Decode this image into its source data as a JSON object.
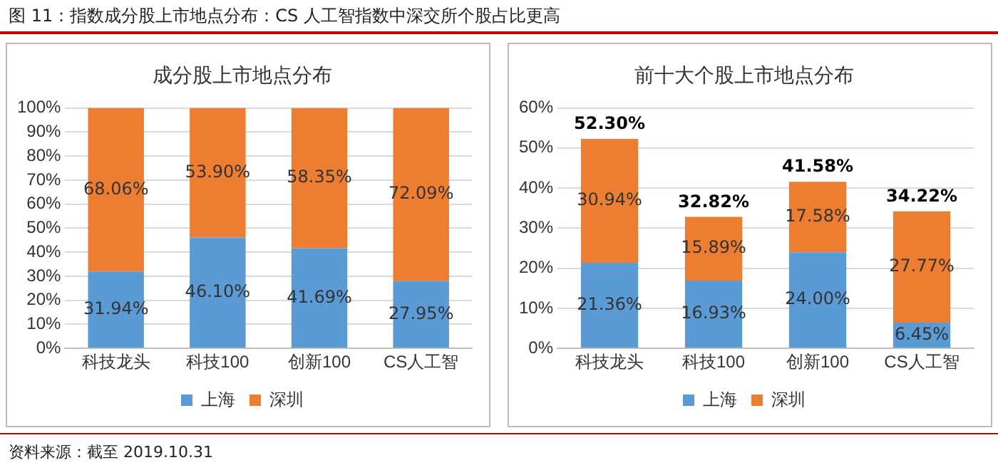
{
  "chart_data": [
    {
      "type": "bar",
      "title": "成分股上市地点分布",
      "annotations": [
        "图 11：指数成分股上市地点分布：CS 人工智指数中深交所个股占比更高",
        "资料来源：截至 2019.10.31"
      ],
      "categories": [
        "科技龙头",
        "科技100",
        "创新100",
        "CS人工智"
      ],
      "stacked": true,
      "legend": "bottom",
      "grid": "y",
      "ylim": [
        0,
        100
      ],
      "yticks": [
        {
          "value": 0,
          "label": "0%"
        },
        {
          "value": 10,
          "label": "10%"
        },
        {
          "value": 20,
          "label": "20%"
        },
        {
          "value": 30,
          "label": "30%"
        },
        {
          "value": 40,
          "label": "40%"
        },
        {
          "value": 50,
          "label": "50%"
        },
        {
          "value": 60,
          "label": "60%"
        },
        {
          "value": 70,
          "label": "70%"
        },
        {
          "value": 80,
          "label": "80%"
        },
        {
          "value": 90,
          "label": "90%"
        },
        {
          "value": 100,
          "label": "100%"
        }
      ],
      "series": [
        {
          "name": "上海",
          "color": "#5b9bd5",
          "values": [
            31.94,
            46.1,
            41.69,
            27.95
          ],
          "value_labels": [
            "31.94%",
            "46.10%",
            "41.69%",
            "27.95%"
          ]
        },
        {
          "name": "深圳",
          "color": "#ed7d31",
          "values": [
            68.06,
            53.9,
            58.35,
            72.09
          ],
          "value_labels": [
            "68.06%",
            "53.90%",
            "58.35%",
            "72.09%"
          ]
        }
      ]
    },
    {
      "type": "bar",
      "title": "前十大个股上市地点分布",
      "categories": [
        "科技龙头",
        "科技100",
        "创新100",
        "CS人工智"
      ],
      "stacked": true,
      "legend": "bottom",
      "grid": "y",
      "ylim": [
        0,
        60
      ],
      "yticks": [
        {
          "value": 0,
          "label": "0%"
        },
        {
          "value": 10,
          "label": "10%"
        },
        {
          "value": 20,
          "label": "20%"
        },
        {
          "value": 30,
          "label": "30%"
        },
        {
          "value": 40,
          "label": "40%"
        },
        {
          "value": 50,
          "label": "50%"
        },
        {
          "value": 60,
          "label": "60%"
        }
      ],
      "totals": [
        "52.30%",
        "32.82%",
        "41.58%",
        "34.22%"
      ],
      "series": [
        {
          "name": "上海",
          "color": "#5b9bd5",
          "values": [
            21.36,
            16.93,
            24.0,
            6.45
          ],
          "value_labels": [
            "21.36%",
            "16.93%",
            "24.00%",
            "6.45%"
          ]
        },
        {
          "name": "深圳",
          "color": "#ed7d31",
          "values": [
            30.94,
            15.89,
            17.58,
            27.77
          ],
          "value_labels": [
            "30.94%",
            "15.89%",
            "17.58%",
            "27.77%"
          ]
        }
      ]
    }
  ]
}
